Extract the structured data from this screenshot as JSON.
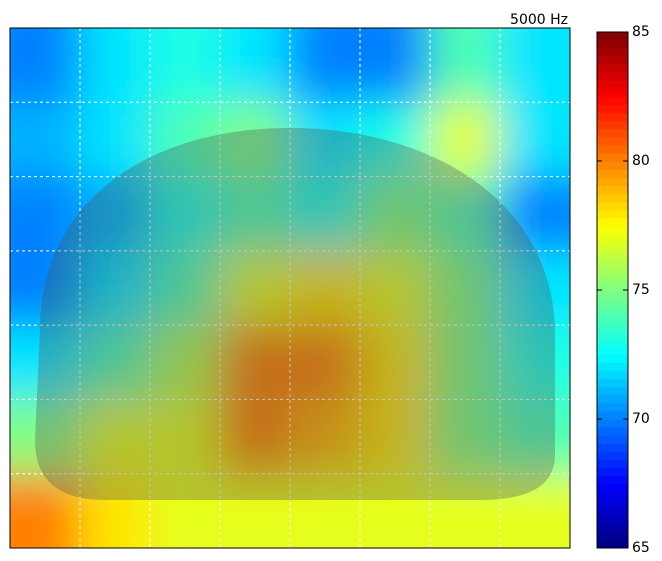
{
  "chart_data": {
    "type": "heatmap",
    "title": "5000 Hz",
    "values": [
      [
        70,
        72,
        73,
        72,
        70,
        70,
        74,
        72
      ],
      [
        71,
        72,
        74,
        75,
        72,
        73,
        77,
        72
      ],
      [
        70,
        71,
        73,
        74,
        73,
        75,
        74,
        70
      ],
      [
        70,
        72,
        74,
        77,
        78,
        77,
        75,
        72
      ],
      [
        72,
        74,
        76,
        80,
        80,
        78,
        75,
        73
      ],
      [
        75,
        77,
        77,
        80,
        79,
        78,
        75,
        74
      ],
      [
        80,
        78,
        77,
        77,
        77,
        77,
        77,
        77
      ]
    ],
    "colormap": "jet",
    "clim": [
      65,
      85
    ],
    "cticks": [
      65,
      70,
      75,
      80,
      85
    ],
    "grid": true
  }
}
